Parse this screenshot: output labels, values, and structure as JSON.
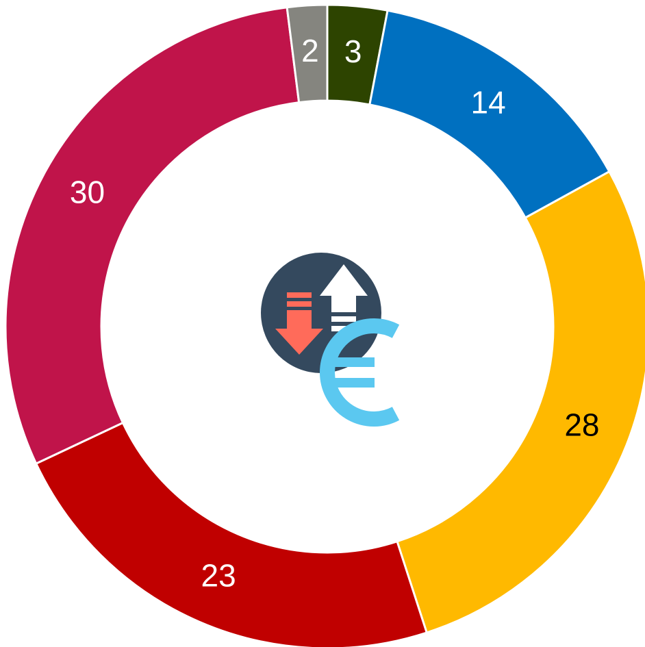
{
  "chart_data": {
    "type": "donut",
    "values": [
      3,
      14,
      28,
      23,
      30,
      2
    ],
    "colors": [
      "#2d4400",
      "#0070c0",
      "#ffb900",
      "#c00000",
      "#c0144a",
      "#85857f"
    ],
    "label_colors": [
      "#ffffff",
      "#ffffff",
      "#000000",
      "#ffffff",
      "#ffffff",
      "#ffffff"
    ]
  }
}
